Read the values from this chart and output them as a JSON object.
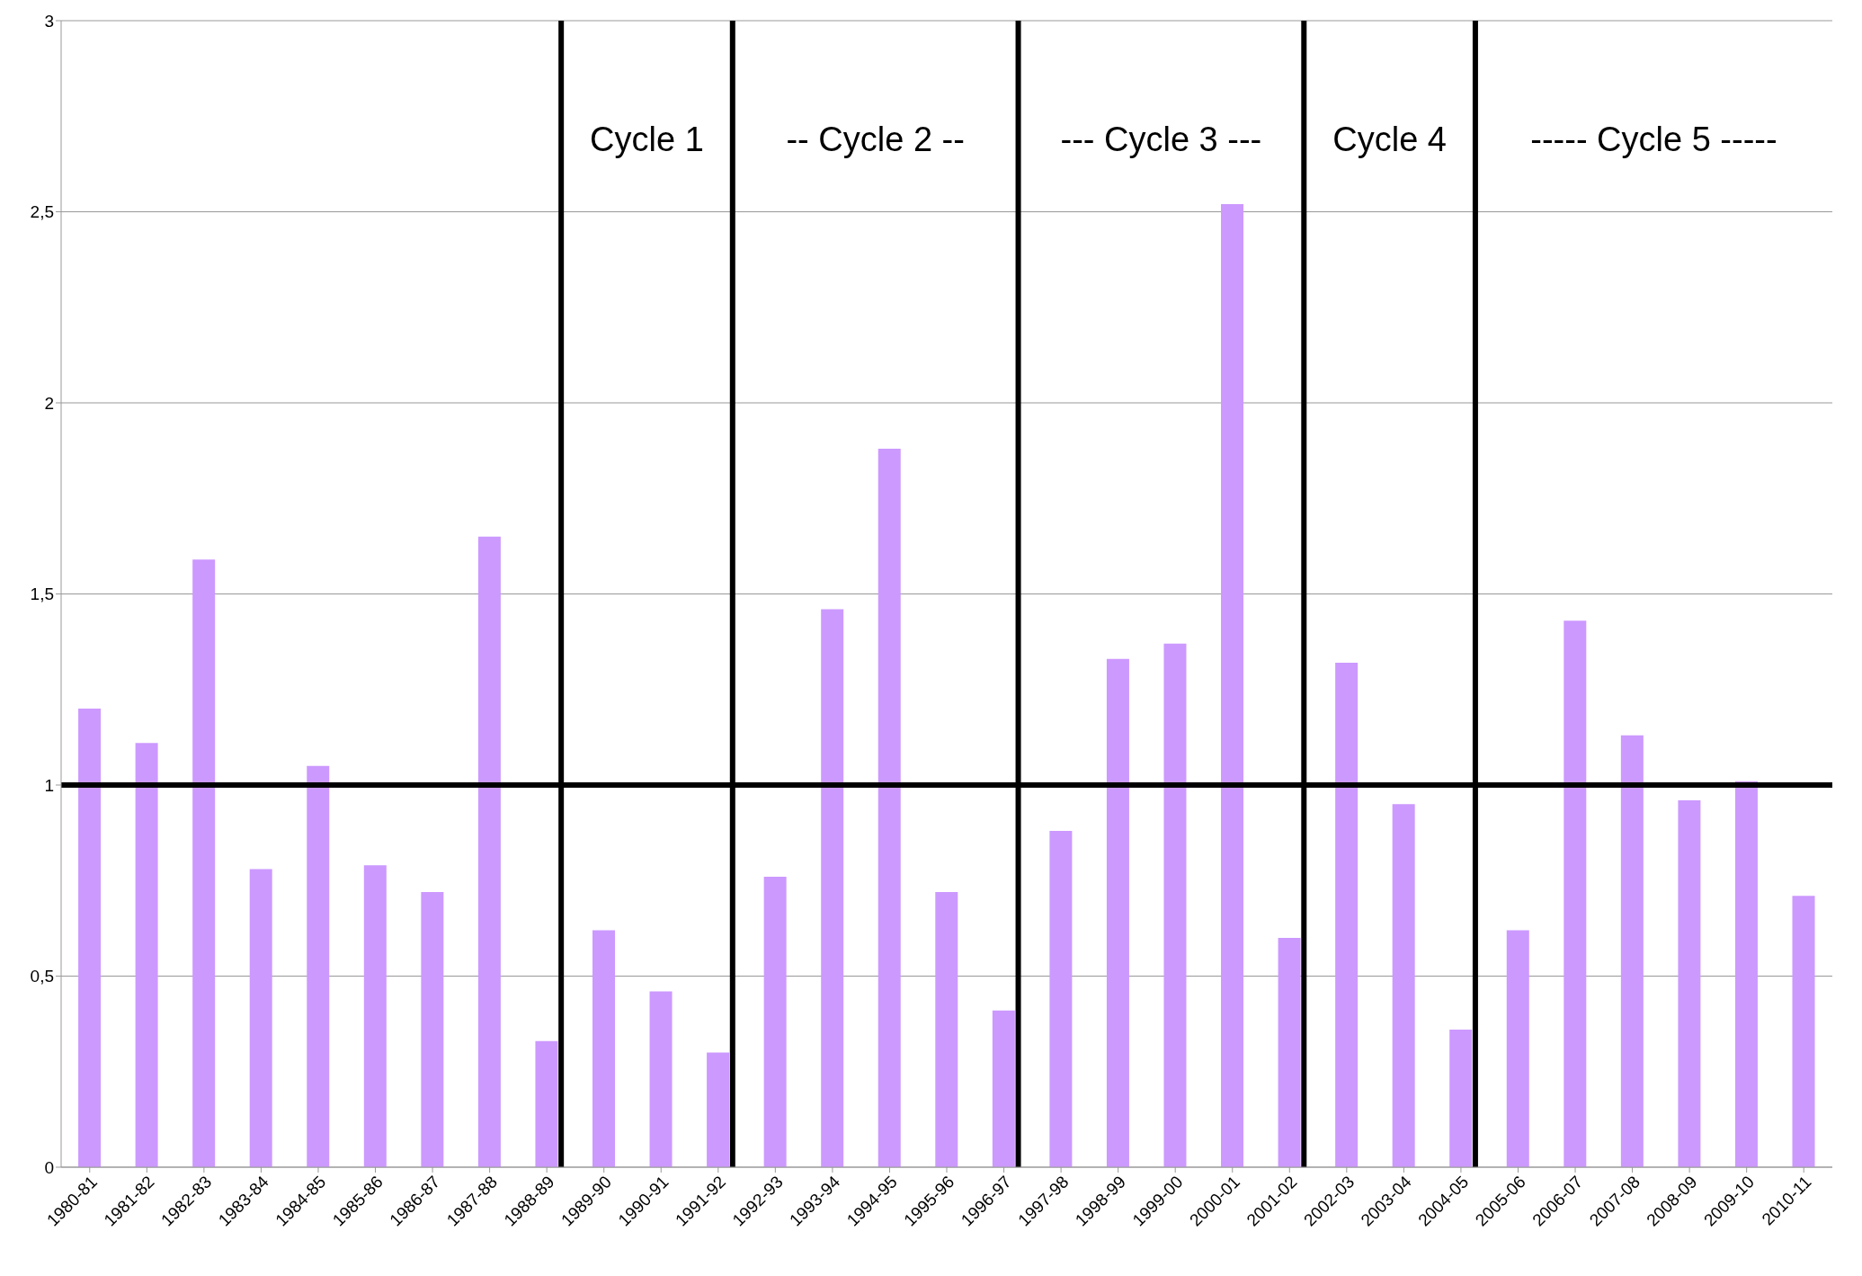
{
  "chart_data": {
    "type": "bar",
    "categories": [
      "1980-81",
      "1981-82",
      "1982-83",
      "1983-84",
      "1984-85",
      "1985-86",
      "1986-87",
      "1987-88",
      "1988-89",
      "1989-90",
      "1990-91",
      "1991-92",
      "1992-93",
      "1993-94",
      "1994-95",
      "1995-96",
      "1996-97",
      "1997-98",
      "1998-99",
      "1999-00",
      "2000-01",
      "2001-02",
      "2002-03",
      "2003-04",
      "2004-05",
      "2005-06",
      "2006-07",
      "2007-08",
      "2008-09",
      "2009-10",
      "2010-11"
    ],
    "values": [
      1.2,
      1.11,
      1.59,
      0.78,
      1.05,
      0.79,
      0.72,
      1.65,
      0.33,
      0.62,
      0.46,
      0.3,
      0.76,
      1.46,
      1.88,
      0.72,
      0.41,
      0.88,
      1.33,
      1.37,
      2.52,
      0.6,
      1.32,
      0.95,
      0.36,
      0.62,
      1.43,
      1.13,
      0.96,
      1.01,
      0.71
    ],
    "color": "#cc99ff",
    "ylim": [
      0,
      3
    ],
    "yticks": [
      0,
      {
        "value": 0.5,
        "label": "0,5"
      },
      1,
      {
        "value": 1.5,
        "label": "1,5"
      },
      2,
      {
        "value": 2.5,
        "label": "2,5"
      },
      3
    ],
    "grid": "y",
    "ref_lines": [
      {
        "axis": "y",
        "value": 1,
        "color": "#000000"
      },
      {
        "axis": "x",
        "value": "1988-89",
        "color": "#000000"
      },
      {
        "axis": "x",
        "value": "1991-92",
        "color": "#000000"
      },
      {
        "axis": "x",
        "value": "1996-97",
        "color": "#000000"
      },
      {
        "axis": "x",
        "value": "2001-02",
        "color": "#000000"
      },
      {
        "axis": "x",
        "value": "2004-05",
        "color": "#000000"
      }
    ],
    "annotations": [
      "Cycle 1",
      "-- Cycle 2 --",
      "--- Cycle 3 ---",
      "Cycle 4",
      "----- Cycle 5 -----"
    ]
  }
}
